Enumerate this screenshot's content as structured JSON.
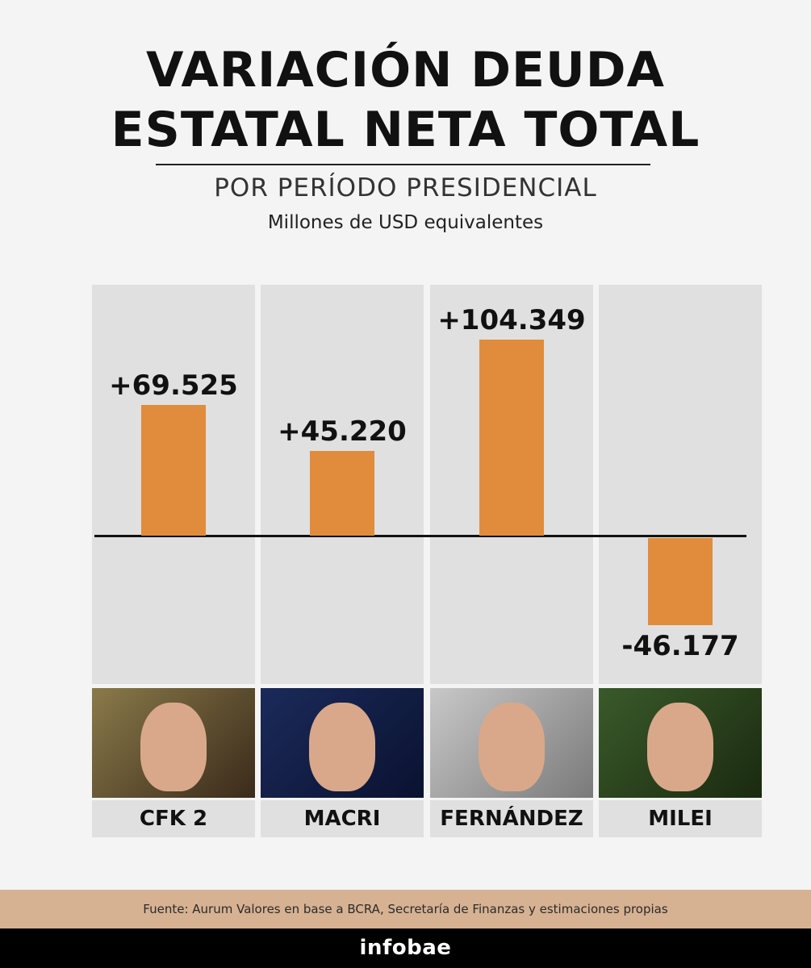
{
  "title_line1": "VARIACIÓN DEUDA",
  "title_line2": "ESTATAL NETA TOTAL",
  "subtitle": "POR PERÍODO PRESIDENCIAL",
  "units": "Millones de USD equivalentes",
  "source": "Fuente: Aurum Valores en base a BCRA, Secretaría de Finanzas y estimaciones propias",
  "brand": "infobae",
  "colors": {
    "bar": "#e08c3c",
    "background": "#f4f4f4",
    "column": "#e0e0e0",
    "footer": "#d6b292"
  },
  "chart_data": {
    "type": "bar",
    "title": "VARIACIÓN DEUDA ESTATAL NETA TOTAL",
    "subtitle": "POR PERÍODO PRESIDENCIAL",
    "ylabel": "Millones de USD equivalentes",
    "categories": [
      "CFK 2",
      "MACRI",
      "FERNÁNDEZ",
      "MILEI"
    ],
    "values": [
      69525,
      45220,
      104349,
      -46177
    ],
    "value_labels": [
      "+69.525",
      "+45.220",
      "+104.349",
      "-46.177"
    ],
    "ylim": [
      -80000,
      135000
    ],
    "grid": false,
    "legend": "none"
  }
}
